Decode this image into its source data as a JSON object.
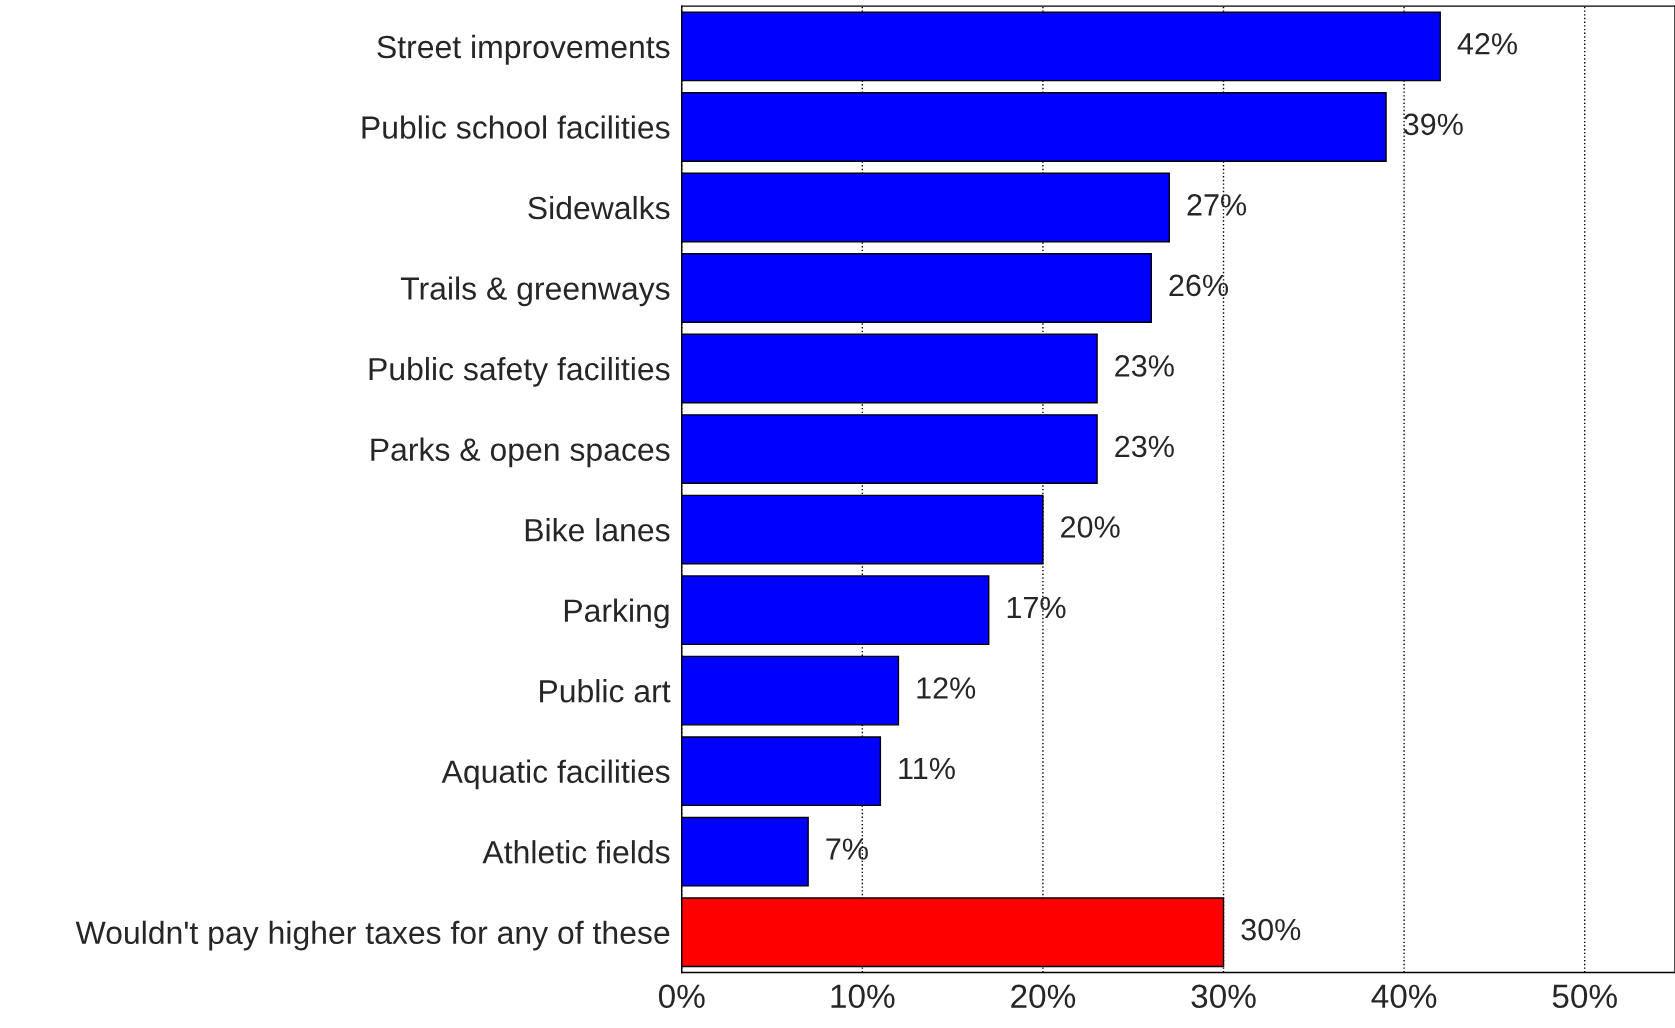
{
  "chart_data": {
    "type": "bar",
    "orientation": "horizontal",
    "categories": [
      "Street improvements",
      "Public school facilities",
      "Sidewalks",
      "Trails & greenways",
      "Public safety facilities",
      "Parks & open spaces",
      "Bike lanes",
      "Parking",
      "Public art",
      "Aquatic facilities",
      "Athletic fields",
      "Wouldn't pay higher taxes for any of these"
    ],
    "values": [
      42,
      39,
      27,
      26,
      23,
      23,
      20,
      17,
      12,
      11,
      7,
      30
    ],
    "value_labels": [
      "42%",
      "39%",
      "27%",
      "26%",
      "23%",
      "23%",
      "20%",
      "17%",
      "12%",
      "11%",
      "7%",
      "30%"
    ],
    "colors": [
      "#0000ff",
      "#0000ff",
      "#0000ff",
      "#0000ff",
      "#0000ff",
      "#0000ff",
      "#0000ff",
      "#0000ff",
      "#0000ff",
      "#0000ff",
      "#0000ff",
      "#ff0000"
    ],
    "xlim": [
      0,
      55
    ],
    "xticks": [
      {
        "value": 0,
        "label": "0%"
      },
      {
        "value": 10,
        "label": "10%"
      },
      {
        "value": 20,
        "label": "20%"
      },
      {
        "value": 30,
        "label": "30%"
      },
      {
        "value": 40,
        "label": "40%"
      },
      {
        "value": 50,
        "label": "50%"
      }
    ],
    "grid": "x",
    "line_style": "dotted",
    "legend": false
  }
}
